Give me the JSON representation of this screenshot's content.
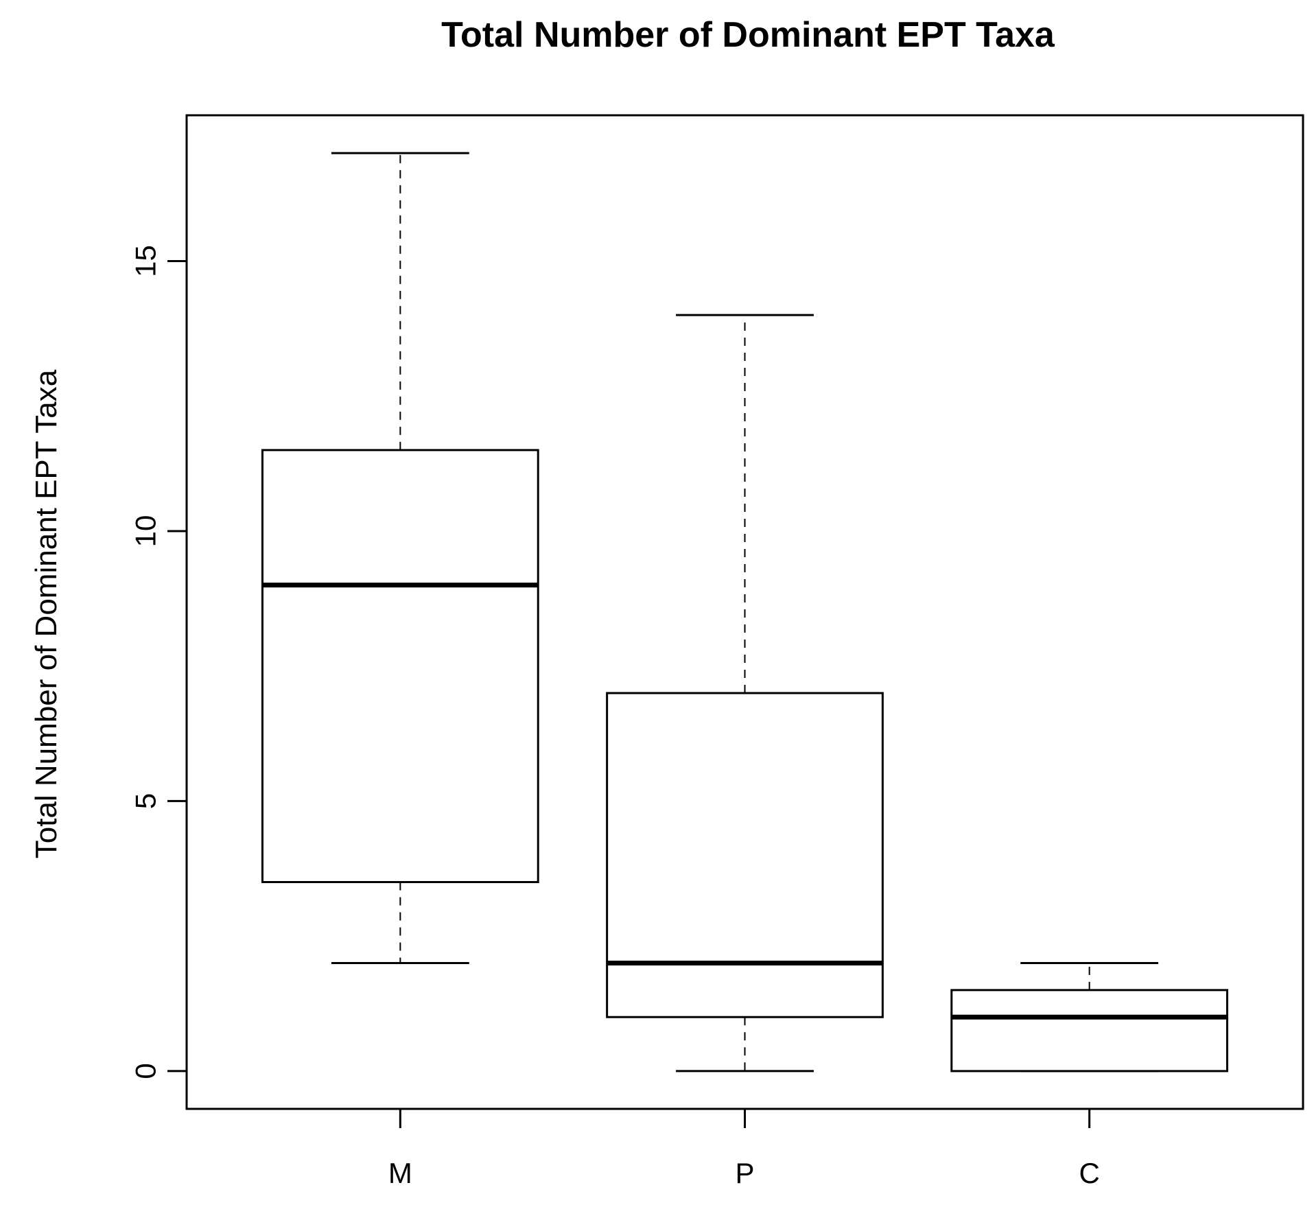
{
  "chart_data": {
    "type": "boxplot",
    "title": "Total Number of Dominant EPT Taxa",
    "xlabel": "",
    "ylabel": "Total Number of Dominant EPT Taxa",
    "ylim": [
      -0.7,
      17.7
    ],
    "yticks": [
      0,
      5,
      10,
      15
    ],
    "grid": false,
    "categories": [
      "M",
      "P",
      "C"
    ],
    "boxes": [
      {
        "category": "M",
        "whisker_low": 2,
        "q1": 3.5,
        "median": 9,
        "q3": 11.5,
        "whisker_high": 17
      },
      {
        "category": "P",
        "whisker_low": 0,
        "q1": 1,
        "median": 2,
        "q3": 7,
        "whisker_high": 14
      },
      {
        "category": "C",
        "whisker_low": 0,
        "q1": 0,
        "median": 1,
        "q3": 1.5,
        "whisker_high": 2
      }
    ]
  }
}
